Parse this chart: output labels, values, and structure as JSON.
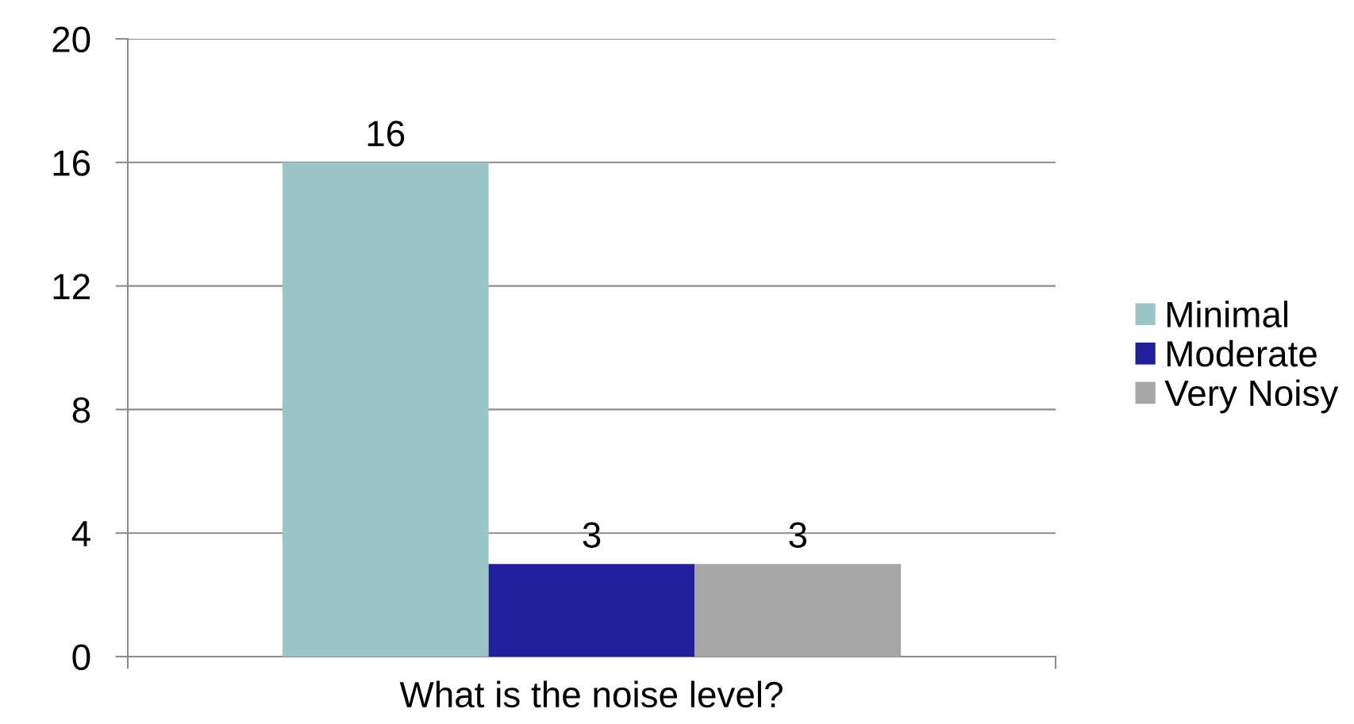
{
  "chart_data": {
    "type": "bar",
    "categories": [
      "What is the noise level?"
    ],
    "series": [
      {
        "name": "Minimal",
        "color": "#9cc5c8",
        "values": [
          16
        ]
      },
      {
        "name": "Moderate",
        "color": "#221f9c",
        "values": [
          3
        ]
      },
      {
        "name": "Very Noisy",
        "color": "#a6a6a6",
        "values": [
          3
        ]
      }
    ],
    "ylim": [
      0,
      20
    ],
    "yticks": [
      0,
      4,
      8,
      12,
      16,
      20
    ],
    "grid": "y",
    "legend": "right",
    "data_labels": true
  }
}
